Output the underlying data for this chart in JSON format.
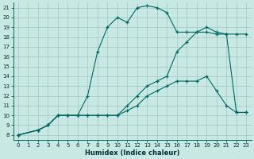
{
  "xlabel": "Humidex (Indice chaleur)",
  "bg_color": "#c8e8e4",
  "grid_color": "#a0c8c4",
  "line_color": "#006860",
  "xlim": [
    -0.5,
    23.5
  ],
  "ylim": [
    7.5,
    21.5
  ],
  "xticks": [
    0,
    1,
    2,
    3,
    4,
    5,
    6,
    7,
    8,
    9,
    10,
    11,
    12,
    13,
    14,
    15,
    16,
    17,
    18,
    19,
    20,
    21,
    22,
    23
  ],
  "yticks": [
    8,
    9,
    10,
    11,
    12,
    13,
    14,
    15,
    16,
    17,
    18,
    19,
    20,
    21
  ],
  "curve1_x": [
    0,
    2,
    3,
    4,
    5,
    6,
    7,
    8,
    9,
    10,
    11,
    12,
    13,
    14,
    15,
    16,
    17,
    18,
    19,
    20,
    21,
    22,
    23
  ],
  "curve1_y": [
    8,
    8.5,
    9.0,
    10.0,
    10.0,
    10.0,
    12.0,
    16.5,
    19.0,
    20.0,
    19.5,
    21.0,
    21.2,
    21.0,
    20.5,
    18.5,
    18.5,
    18.5,
    18.5,
    18.3,
    18.3,
    10.3,
    10.3
  ],
  "curve2_x": [
    0,
    2,
    3,
    4,
    5,
    6,
    7,
    8,
    9,
    10,
    11,
    12,
    13,
    14,
    15,
    16,
    17,
    18,
    19,
    20,
    21,
    22,
    23
  ],
  "curve2_y": [
    8,
    8.5,
    9.0,
    10.0,
    10.0,
    10.0,
    10.0,
    10.0,
    10.0,
    10.0,
    11.0,
    12.0,
    13.0,
    13.5,
    14.0,
    16.5,
    17.5,
    18.5,
    19.0,
    18.5,
    18.3,
    18.3,
    18.3
  ],
  "curve3_x": [
    0,
    2,
    3,
    4,
    5,
    6,
    7,
    8,
    9,
    10,
    11,
    12,
    13,
    14,
    15,
    16,
    17,
    18,
    19,
    20,
    21,
    22,
    23
  ],
  "curve3_y": [
    8,
    8.5,
    9.0,
    10.0,
    10.0,
    10.0,
    10.0,
    10.0,
    10.0,
    10.0,
    10.5,
    11.0,
    12.0,
    12.5,
    13.0,
    13.5,
    13.5,
    13.5,
    14.0,
    12.5,
    11.0,
    10.3,
    10.3
  ]
}
